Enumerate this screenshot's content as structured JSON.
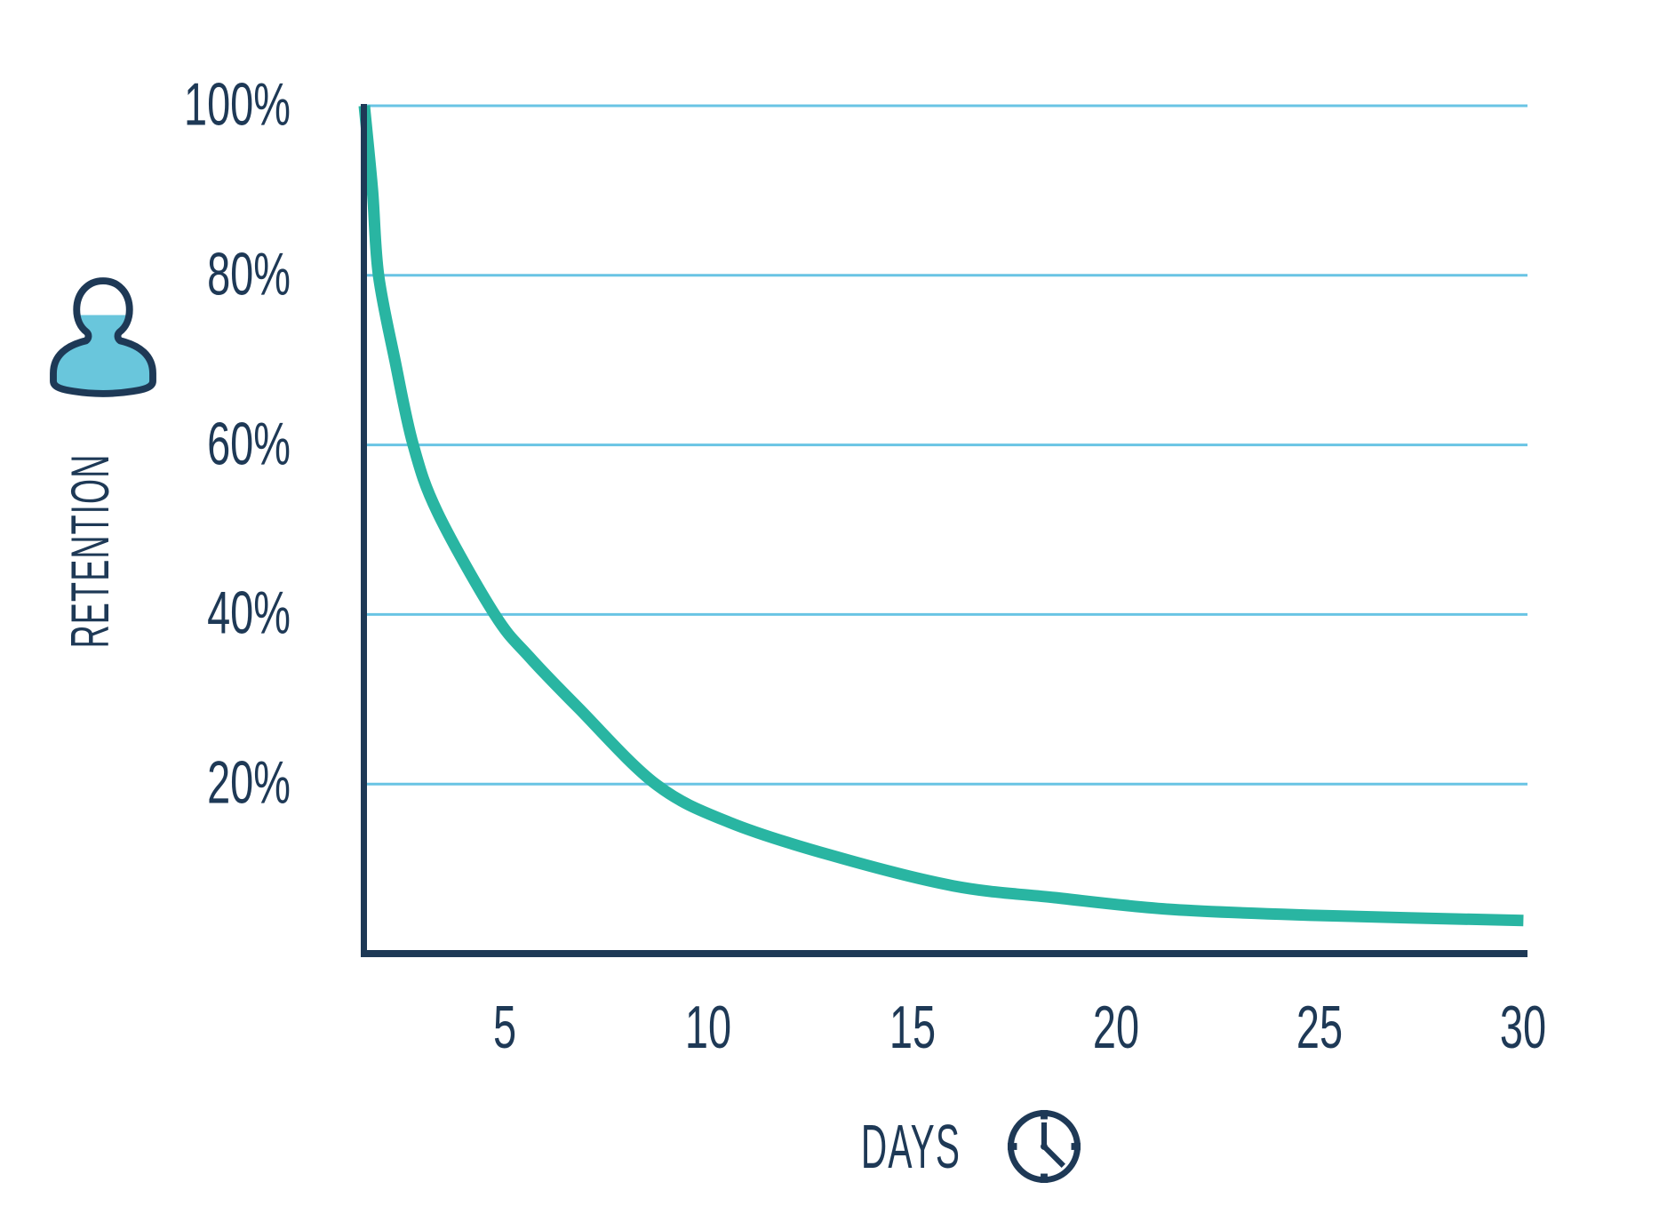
{
  "chart_data": {
    "type": "line",
    "title": "",
    "xlabel": "DAYS",
    "ylabel": "RETENTION",
    "xlim": [
      1.5,
      30
    ],
    "ylim": [
      0,
      100
    ],
    "y_unit": "%",
    "grid": "horizontal-only",
    "legend": "none",
    "x_ticks": [
      {
        "value": 5,
        "label": "5"
      },
      {
        "value": 10,
        "label": "10"
      },
      {
        "value": 15,
        "label": "15"
      },
      {
        "value": 20,
        "label": "20"
      },
      {
        "value": 25,
        "label": "25"
      },
      {
        "value": 30,
        "label": "30"
      }
    ],
    "y_ticks": [
      {
        "value": 100,
        "label": "100%"
      },
      {
        "value": 80,
        "label": "80%"
      },
      {
        "value": 60,
        "label": "60%"
      },
      {
        "value": 40,
        "label": "40%"
      },
      {
        "value": 20,
        "label": "20%"
      }
    ],
    "series": [
      {
        "name": "retention",
        "color": "#29B5A2",
        "points_day_pct": [
          [
            1.55,
            100
          ],
          [
            1.75,
            90
          ],
          [
            1.9,
            80
          ],
          [
            2.3,
            70
          ],
          [
            2.75,
            60
          ],
          [
            3.35,
            52
          ],
          [
            4.75,
            40
          ],
          [
            5.6,
            35
          ],
          [
            6.8,
            29
          ],
          [
            8.7,
            20
          ],
          [
            10.5,
            15.5
          ],
          [
            13,
            11.6
          ],
          [
            16,
            8
          ],
          [
            18.5,
            6.6
          ],
          [
            21.4,
            5.2
          ],
          [
            25,
            4.5
          ],
          [
            30,
            3.9
          ]
        ]
      }
    ]
  },
  "icons": {
    "y_axis_icon": "user-retention-icon",
    "x_axis_icon": "clock-icon"
  },
  "colors": {
    "axis": "#1E3956",
    "text": "#1E3956",
    "grid": "#69C4E4",
    "curve": "#29B5A2",
    "icon_fill": "#69C6DC",
    "background": "#FFFFFF"
  }
}
